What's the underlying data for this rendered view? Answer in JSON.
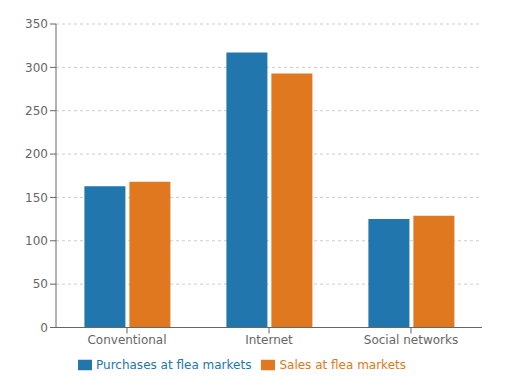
{
  "chart_data": {
    "type": "bar",
    "categories": [
      "Conventional",
      "Internet",
      "Social networks"
    ],
    "series": [
      {
        "name": "Purchases at flea markets",
        "color": "#2176ae",
        "values": [
          163,
          317,
          125
        ]
      },
      {
        "name": "Sales at flea markets",
        "color": "#e07820",
        "values": [
          168,
          293,
          129
        ]
      }
    ],
    "ylim": [
      0,
      350
    ],
    "yticks": [
      0,
      50,
      100,
      150,
      200,
      250,
      300,
      350
    ],
    "grid": true,
    "legend": "bottom"
  }
}
